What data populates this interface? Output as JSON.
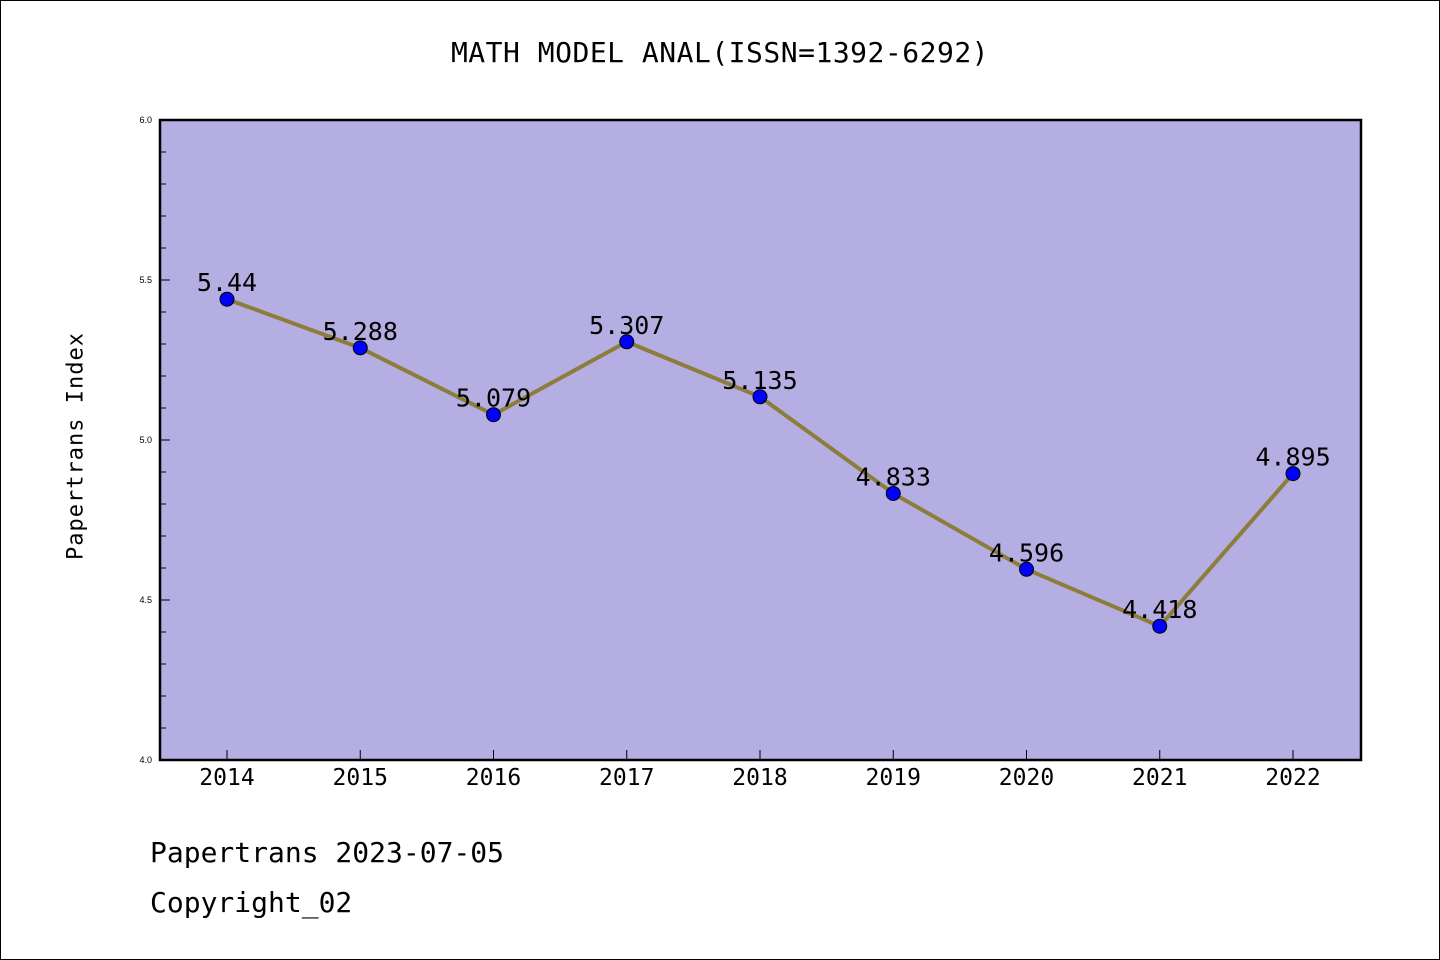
{
  "chart_data": {
    "type": "line",
    "title": "MATH MODEL ANAL(ISSN=1392-6292)",
    "xlabel": "",
    "ylabel": "Papertrans Index",
    "categories": [
      "2014",
      "2015",
      "2016",
      "2017",
      "2018",
      "2019",
      "2020",
      "2021",
      "2022"
    ],
    "series": [
      {
        "values": [
          5.44,
          5.288,
          5.079,
          5.307,
          5.135,
          4.833,
          4.596,
          4.418,
          4.895
        ],
        "labels": [
          "5.44",
          "5.288",
          "5.079",
          "5.307",
          "5.135",
          "4.833",
          "4.596",
          "4.418",
          "4.895"
        ]
      }
    ],
    "ylim": [
      4.0,
      6.0
    ],
    "yticks": [
      "4.0",
      "4.5",
      "5.0",
      "5.5",
      "6.0"
    ],
    "grid": false,
    "legend": "none",
    "colors": {
      "plot_background": "#b4aee2",
      "line": "#8c7d3a",
      "marker": "#0000ff"
    }
  },
  "footer": {
    "line1": "Papertrans 2023-07-05",
    "line2": "Copyright_02"
  }
}
